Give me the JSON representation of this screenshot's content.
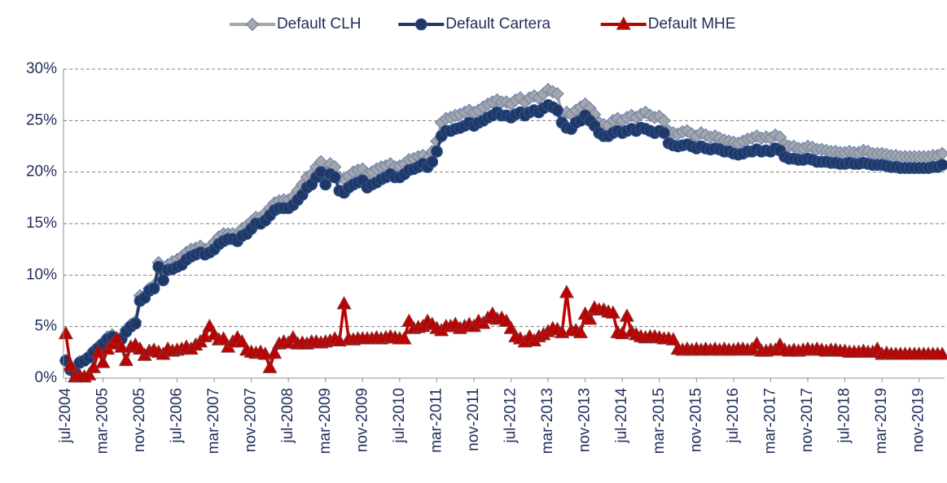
{
  "chart_data": {
    "type": "line",
    "categories": [
      "jul-2004",
      null,
      null,
      null,
      null,
      null,
      null,
      null,
      "mar-2005",
      null,
      null,
      null,
      null,
      null,
      null,
      null,
      "nov-2005",
      null,
      null,
      null,
      null,
      null,
      null,
      null,
      "jul-2006",
      null,
      null,
      null,
      null,
      null,
      null,
      null,
      "mar-2007",
      null,
      null,
      null,
      null,
      null,
      null,
      null,
      "nov-2007",
      null,
      null,
      null,
      null,
      null,
      null,
      null,
      "jul-2008",
      null,
      null,
      null,
      null,
      null,
      null,
      null,
      "mar-2009",
      null,
      null,
      null,
      null,
      null,
      null,
      null,
      "nov-2009",
      null,
      null,
      null,
      null,
      null,
      null,
      null,
      "jul-2010",
      null,
      null,
      null,
      null,
      null,
      null,
      null,
      "mar-2011",
      null,
      null,
      null,
      null,
      null,
      null,
      null,
      "nov-2011",
      null,
      null,
      null,
      null,
      null,
      null,
      null,
      "jul-2012",
      null,
      null,
      null,
      null,
      null,
      null,
      null,
      "mar-2013",
      null,
      null,
      null,
      null,
      null,
      null,
      null,
      "nov-2013",
      null,
      null,
      null,
      null,
      null,
      null,
      null,
      "jul-2014",
      null,
      null,
      null,
      null,
      null,
      null,
      null,
      "mar-2015",
      null,
      null,
      null,
      null,
      null,
      null,
      null,
      "nov-2015",
      null,
      null,
      null,
      null,
      null,
      null,
      null,
      "jul-2016",
      null,
      null,
      null,
      null,
      null,
      null,
      null,
      "mar-2017",
      null,
      null,
      null,
      null,
      null,
      null,
      null,
      "nov-2017",
      null,
      null,
      null,
      null,
      null,
      null,
      null,
      "jul-2018",
      null,
      null,
      null,
      null,
      null,
      null,
      null,
      "mar-2019",
      null,
      null,
      null,
      null,
      null,
      null,
      null,
      "nov-2019",
      null,
      null,
      null,
      null,
      null
    ],
    "series": [
      {
        "name": "Default CLH",
        "color": "#a6a6a6",
        "edge": "#6f86b5",
        "marker": "diamond",
        "values": [
          1.7,
          0.9,
          0.6,
          1.6,
          1.8,
          2.2,
          2.7,
          3.1,
          3.5,
          4.0,
          4.2,
          3.7,
          4.0,
          4.7,
          5.2,
          5.5,
          8.0,
          8.0,
          8.7,
          9.0,
          11.2,
          10.2,
          11.0,
          11.3,
          11.5,
          11.8,
          12.2,
          12.5,
          12.6,
          12.8,
          12.5,
          12.7,
          13.2,
          13.7,
          14.0,
          14.0,
          14.0,
          13.9,
          14.5,
          14.8,
          15.2,
          15.6,
          15.6,
          16.0,
          16.5,
          17.0,
          17.2,
          17.3,
          17.3,
          17.6,
          18.2,
          18.8,
          19.5,
          19.8,
          20.5,
          21.0,
          20.0,
          20.8,
          20.5,
          19.5,
          19.3,
          19.6,
          20.0,
          20.2,
          20.3,
          19.8,
          20.0,
          20.3,
          20.5,
          20.6,
          20.8,
          20.5,
          20.6,
          20.8,
          21.2,
          21.3,
          21.5,
          21.6,
          21.3,
          22.0,
          23.0,
          24.8,
          25.2,
          25.3,
          25.5,
          25.6,
          25.8,
          26.0,
          25.8,
          26.0,
          26.3,
          26.6,
          26.8,
          27.0,
          26.8,
          26.8,
          26.6,
          27.0,
          27.2,
          26.8,
          27.2,
          27.4,
          27.2,
          27.6,
          28.0,
          27.8,
          27.6,
          25.5,
          25.8,
          25.6,
          26.0,
          26.3,
          26.6,
          26.2,
          25.6,
          24.8,
          24.6,
          24.5,
          25.0,
          25.2,
          25.0,
          25.3,
          25.5,
          25.3,
          25.6,
          25.8,
          25.5,
          25.3,
          25.4,
          25.0,
          24.0,
          23.8,
          23.7,
          23.9,
          24.0,
          23.7,
          23.5,
          23.8,
          23.6,
          23.4,
          23.5,
          23.3,
          23.1,
          23.0,
          22.9,
          22.8,
          23.0,
          23.2,
          23.3,
          23.5,
          23.3,
          23.4,
          23.3,
          23.6,
          23.4,
          22.7,
          22.5,
          22.5,
          22.3,
          22.3,
          22.5,
          22.4,
          22.2,
          22.2,
          22.1,
          22.0,
          22.0,
          21.9,
          21.9,
          22.0,
          21.9,
          21.9,
          22.1,
          22.0,
          21.8,
          21.8,
          21.8,
          21.7,
          21.6,
          21.6,
          21.5,
          21.5,
          21.5,
          21.5,
          21.5,
          21.5,
          21.5,
          21.6,
          21.6,
          21.8
        ]
      },
      {
        "name": "Default Cartera",
        "color": "#1f3864",
        "edge": "#2e4f8f",
        "marker": "circle",
        "values": [
          1.7,
          0.8,
          0.5,
          1.5,
          1.7,
          2.0,
          2.5,
          2.9,
          3.3,
          3.8,
          4.0,
          3.5,
          3.8,
          4.5,
          5.0,
          5.3,
          7.5,
          7.8,
          8.5,
          8.7,
          10.8,
          9.5,
          10.5,
          10.6,
          10.8,
          11.0,
          11.5,
          11.8,
          12.0,
          12.2,
          12.0,
          12.2,
          12.5,
          13.0,
          13.3,
          13.5,
          13.5,
          13.3,
          13.8,
          14.0,
          14.5,
          15.0,
          15.0,
          15.3,
          15.8,
          16.3,
          16.5,
          16.5,
          16.5,
          16.8,
          17.3,
          17.8,
          18.5,
          18.8,
          19.5,
          20.0,
          18.8,
          19.8,
          19.5,
          18.2,
          18.0,
          18.5,
          18.8,
          19.0,
          19.2,
          18.5,
          18.8,
          19.0,
          19.3,
          19.5,
          19.8,
          19.5,
          19.5,
          19.8,
          20.2,
          20.3,
          20.5,
          20.8,
          20.5,
          21.0,
          22.0,
          23.5,
          24.0,
          24.0,
          24.2,
          24.3,
          24.5,
          24.8,
          24.5,
          24.8,
          25.0,
          25.3,
          25.5,
          25.8,
          25.5,
          25.5,
          25.3,
          25.6,
          25.8,
          25.5,
          25.8,
          26.0,
          25.8,
          26.2,
          26.5,
          26.3,
          26.0,
          24.8,
          24.3,
          24.2,
          24.8,
          25.0,
          25.5,
          25.0,
          24.5,
          23.8,
          23.5,
          23.5,
          23.8,
          24.0,
          23.8,
          24.0,
          24.2,
          24.0,
          24.3,
          24.2,
          24.0,
          23.8,
          24.0,
          23.8,
          22.8,
          22.6,
          22.5,
          22.6,
          22.7,
          22.5,
          22.3,
          22.5,
          22.3,
          22.2,
          22.3,
          22.2,
          22.0,
          22.0,
          21.8,
          21.7,
          21.8,
          22.0,
          22.0,
          22.2,
          22.0,
          22.1,
          22.0,
          22.3,
          22.1,
          21.5,
          21.3,
          21.3,
          21.2,
          21.2,
          21.3,
          21.2,
          21.0,
          21.0,
          21.0,
          20.9,
          20.9,
          20.8,
          20.8,
          20.9,
          20.8,
          20.8,
          20.9,
          20.8,
          20.7,
          20.7,
          20.7,
          20.6,
          20.5,
          20.5,
          20.4,
          20.4,
          20.4,
          20.4,
          20.4,
          20.4,
          20.4,
          20.5,
          20.5,
          20.7
        ]
      },
      {
        "name": "Default MHE",
        "color": "#c00000",
        "edge": "#8b2a2a",
        "marker": "triangle",
        "values": [
          4.3,
          1.2,
          0.1,
          0.2,
          0.1,
          0.3,
          1.0,
          2.5,
          1.5,
          2.8,
          3.3,
          3.8,
          3.0,
          1.7,
          3.0,
          3.2,
          2.8,
          2.2,
          2.6,
          2.7,
          2.5,
          2.3,
          2.8,
          2.6,
          2.7,
          2.8,
          3.0,
          2.8,
          3.2,
          3.5,
          4.0,
          5.0,
          4.2,
          3.7,
          3.8,
          3.0,
          3.5,
          3.9,
          3.5,
          2.7,
          2.5,
          2.4,
          2.5,
          2.3,
          1.0,
          2.4,
          3.3,
          3.5,
          3.4,
          3.9,
          3.3,
          3.4,
          3.3,
          3.5,
          3.5,
          3.4,
          3.5,
          3.6,
          3.8,
          3.6,
          7.2,
          3.8,
          3.7,
          3.8,
          3.8,
          3.8,
          3.8,
          3.9,
          3.8,
          3.9,
          4.0,
          3.9,
          3.8,
          3.8,
          5.5,
          4.8,
          4.9,
          5.0,
          5.5,
          5.2,
          4.8,
          4.6,
          5.0,
          5.0,
          5.2,
          4.8,
          5.0,
          5.2,
          5.0,
          5.5,
          5.3,
          5.8,
          6.2,
          5.7,
          5.8,
          5.5,
          4.8,
          4.0,
          3.8,
          3.5,
          4.0,
          3.6,
          4.0,
          4.2,
          4.5,
          4.8,
          4.7,
          4.4,
          8.3,
          4.6,
          4.6,
          4.4,
          6.2,
          5.7,
          6.8,
          6.6,
          6.6,
          6.4,
          6.3,
          4.4,
          4.3,
          6.0,
          4.5,
          4.2,
          4.0,
          3.9,
          4.0,
          4.0,
          3.9,
          3.8,
          3.8,
          3.7,
          2.8,
          2.7,
          2.8,
          2.7,
          2.8,
          2.7,
          2.8,
          2.7,
          2.8,
          2.7,
          2.8,
          2.7,
          2.7,
          2.8,
          2.8,
          2.7,
          2.8,
          3.3,
          2.6,
          2.6,
          2.7,
          2.7,
          3.2,
          2.7,
          2.6,
          2.7,
          2.6,
          2.7,
          2.8,
          2.7,
          2.8,
          2.7,
          2.6,
          2.7,
          2.7,
          2.6,
          2.6,
          2.5,
          2.5,
          2.5,
          2.6,
          2.5,
          2.5,
          2.8,
          2.3,
          2.4,
          2.3,
          2.3,
          2.3,
          2.3,
          2.3,
          2.3,
          2.3,
          2.3,
          2.3,
          2.3,
          2.3,
          2.3
        ]
      }
    ],
    "ylim": [
      0,
      30
    ],
    "yticks": [
      {
        "value": 0,
        "label": "0%"
      },
      {
        "value": 5,
        "label": "5%"
      },
      {
        "value": 10,
        "label": "10%"
      },
      {
        "value": 15,
        "label": "15%"
      },
      {
        "value": 20,
        "label": "20%"
      },
      {
        "value": 25,
        "label": "25%"
      },
      {
        "value": 30,
        "label": "30%"
      }
    ],
    "grid": true,
    "legend": "top"
  }
}
